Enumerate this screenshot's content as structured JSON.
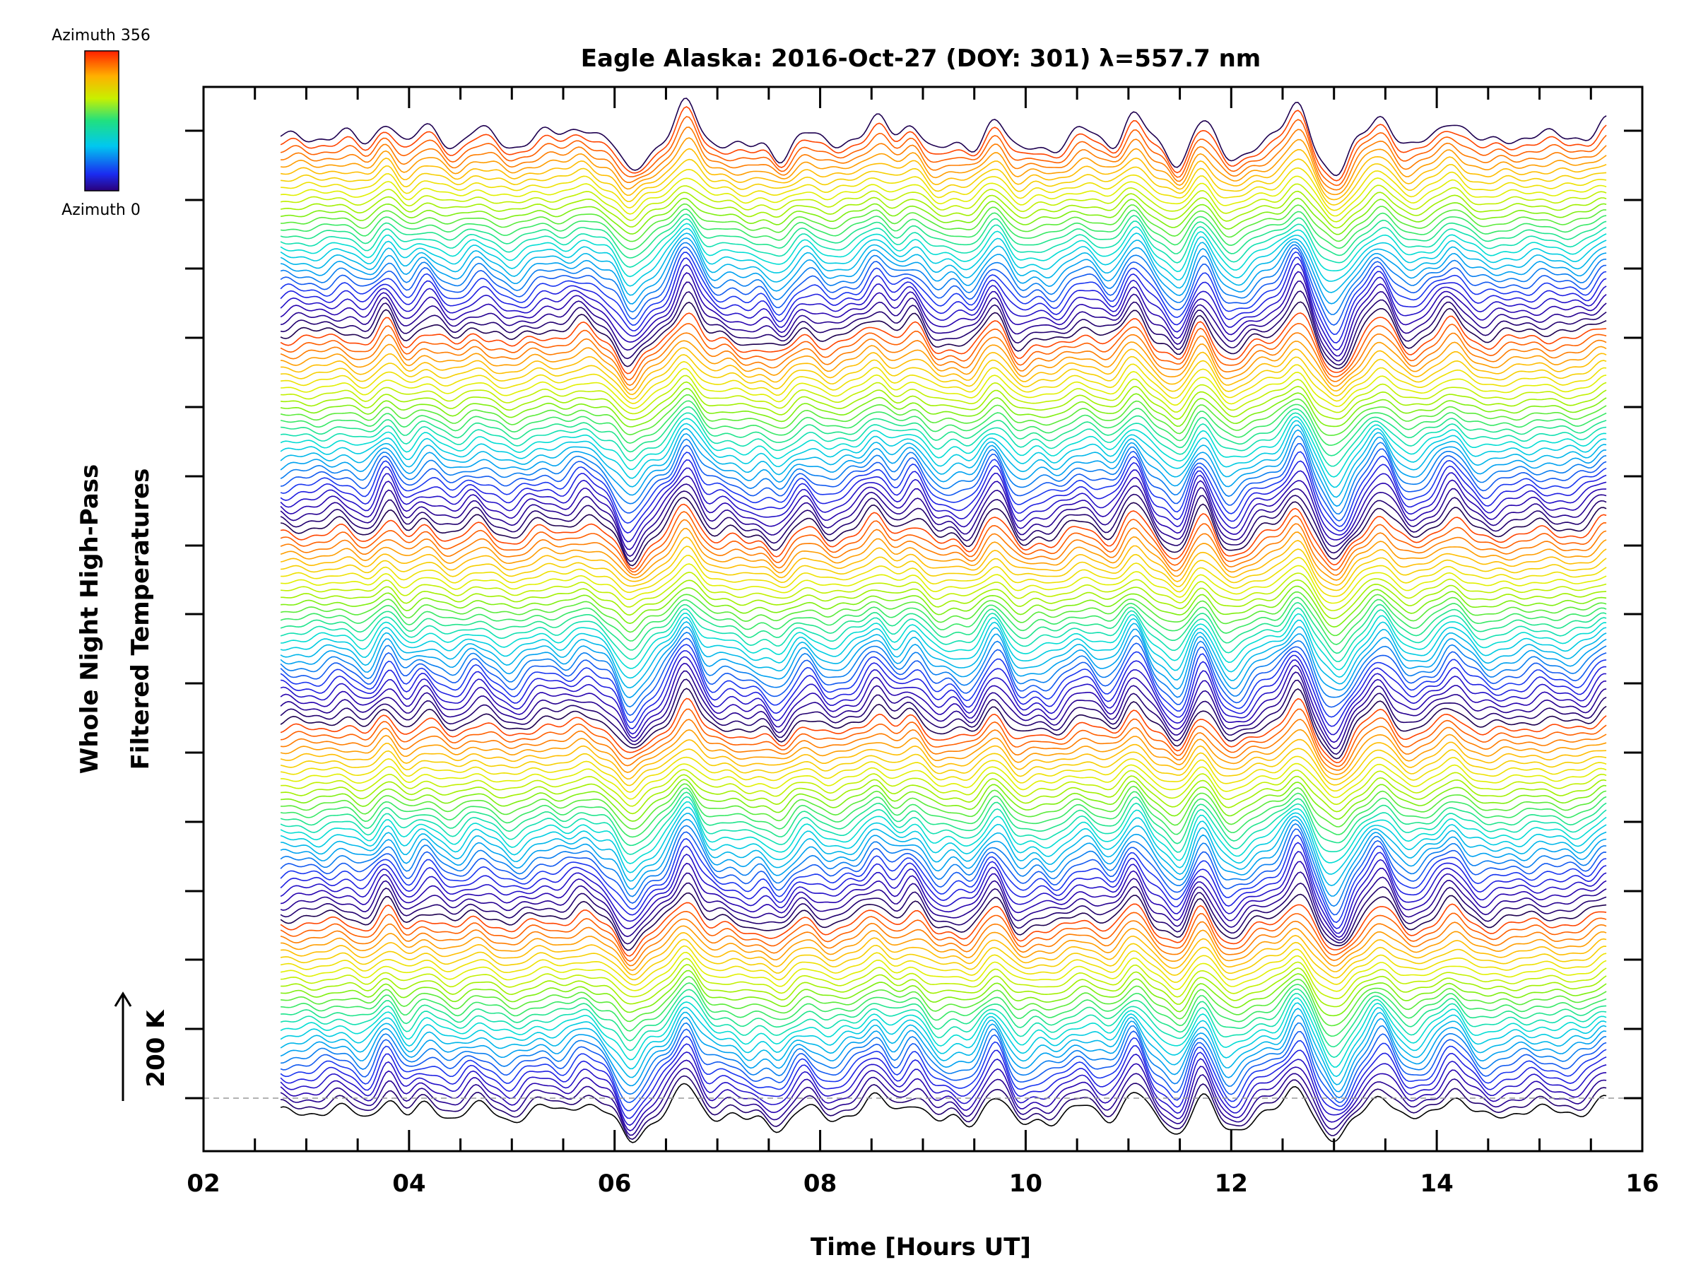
{
  "chart_data": {
    "type": "line",
    "title": "Eagle Alaska: 2016-Oct-27 (DOY: 301) λ=557.7 nm",
    "xlabel": "Time [Hours UT]",
    "ylabel_line1": "Whole Night High-Pass",
    "ylabel_line2": "Filtered Temperatures",
    "scale_label": "200 K",
    "xlim": [
      2,
      16
    ],
    "x_ticks": [
      "02",
      "04",
      "06",
      "08",
      "10",
      "12",
      "14",
      "16"
    ],
    "x_range_data": [
      2.75,
      15.65
    ],
    "colorbar": {
      "label_top": "Azimuth 356",
      "label_bottom": "Azimuth 0",
      "azimuth_min": 0,
      "azimuth_max": 356
    },
    "series_count": 141,
    "baseline_style": "dashed gray",
    "features": [
      {
        "t": 3.35,
        "a": 6
      },
      {
        "t": 3.6,
        "a": -10
      },
      {
        "t": 3.8,
        "a": 26
      },
      {
        "t": 3.95,
        "a": -14
      },
      {
        "t": 4.15,
        "a": 12
      },
      {
        "t": 4.45,
        "a": -8
      },
      {
        "t": 4.65,
        "a": 10
      },
      {
        "t": 5.0,
        "a": -10
      },
      {
        "t": 5.3,
        "a": 6
      },
      {
        "t": 5.7,
        "a": 14
      },
      {
        "t": 6.15,
        "a": -38
      },
      {
        "t": 6.35,
        "a": -10
      },
      {
        "t": 6.7,
        "a": 38
      },
      {
        "t": 6.95,
        "a": -6
      },
      {
        "t": 7.3,
        "a": -12
      },
      {
        "t": 7.6,
        "a": -22
      },
      {
        "t": 7.85,
        "a": 8
      },
      {
        "t": 8.1,
        "a": -10
      },
      {
        "t": 8.55,
        "a": 22
      },
      {
        "t": 8.75,
        "a": -6
      },
      {
        "t": 8.9,
        "a": 18
      },
      {
        "t": 9.15,
        "a": -14
      },
      {
        "t": 9.45,
        "a": -16
      },
      {
        "t": 9.7,
        "a": 24
      },
      {
        "t": 9.95,
        "a": -18
      },
      {
        "t": 10.25,
        "a": -12
      },
      {
        "t": 10.55,
        "a": 8
      },
      {
        "t": 10.85,
        "a": -10
      },
      {
        "t": 11.05,
        "a": 30
      },
      {
        "t": 11.3,
        "a": -8
      },
      {
        "t": 11.5,
        "a": -30
      },
      {
        "t": 11.7,
        "a": 26
      },
      {
        "t": 11.95,
        "a": -20
      },
      {
        "t": 12.1,
        "a": -14
      },
      {
        "t": 12.65,
        "a": 36
      },
      {
        "t": 12.9,
        "a": -18
      },
      {
        "t": 13.05,
        "a": -34
      },
      {
        "t": 13.45,
        "a": 26
      },
      {
        "t": 13.75,
        "a": -12
      },
      {
        "t": 14.15,
        "a": 22
      },
      {
        "t": 14.5,
        "a": -6
      },
      {
        "t": 15.0,
        "a": 4
      },
      {
        "t": 15.65,
        "a": 20
      }
    ]
  }
}
